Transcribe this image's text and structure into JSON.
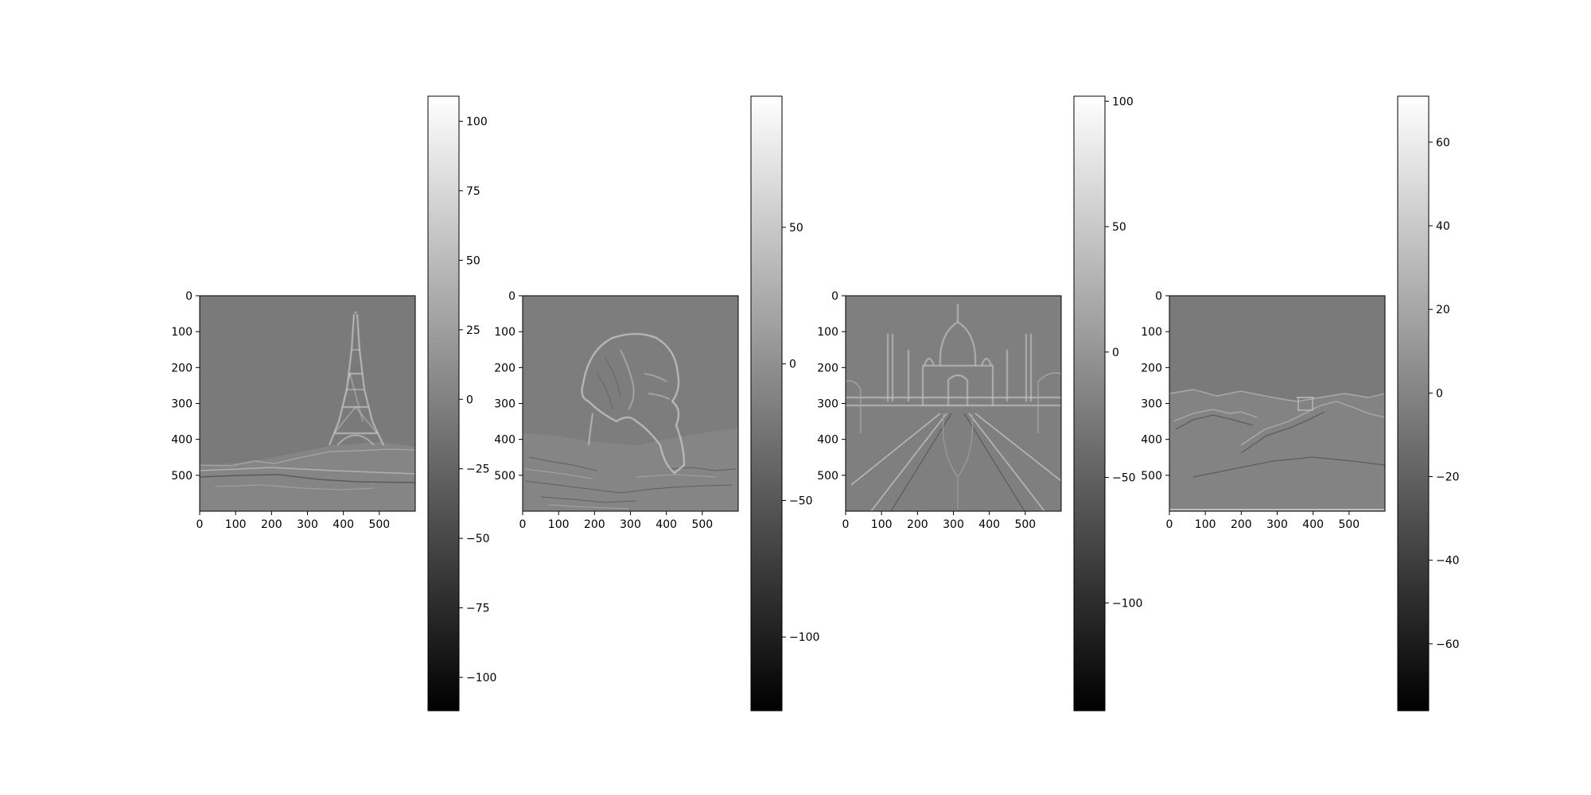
{
  "chart_data": [
    {
      "type": "heatmap",
      "subject": "Eiffel Tower (high-pass filtered grayscale image)",
      "colormap": "gray",
      "image_extent": {
        "x": [
          0,
          600
        ],
        "y": [
          600,
          0
        ]
      },
      "xticks": [
        "0",
        "100",
        "200",
        "300",
        "400",
        "500"
      ],
      "yticks": [
        "0",
        "100",
        "200",
        "300",
        "400",
        "500"
      ],
      "colorbar": {
        "range": [
          -112,
          109
        ],
        "ticks": [
          {
            "value": 100,
            "label": "100"
          },
          {
            "value": 75,
            "label": "75"
          },
          {
            "value": 50,
            "label": "50"
          },
          {
            "value": 25,
            "label": "25"
          },
          {
            "value": 0,
            "label": "0"
          },
          {
            "value": -25,
            "label": "−25"
          },
          {
            "value": -50,
            "label": "−50"
          },
          {
            "value": -75,
            "label": "−75"
          },
          {
            "value": -100,
            "label": "−100"
          }
        ]
      }
    },
    {
      "type": "heatmap",
      "subject": "Sphinx (high-pass filtered grayscale image)",
      "colormap": "gray",
      "image_extent": {
        "x": [
          0,
          600
        ],
        "y": [
          600,
          0
        ]
      },
      "xticks": [
        "0",
        "100",
        "200",
        "300",
        "400",
        "500"
      ],
      "yticks": [
        "0",
        "100",
        "200",
        "300",
        "400",
        "500"
      ],
      "colorbar": {
        "range": [
          -127,
          98
        ],
        "ticks": [
          {
            "value": 50,
            "label": "50"
          },
          {
            "value": 0,
            "label": "0"
          },
          {
            "value": -50,
            "label": "−50"
          },
          {
            "value": -100,
            "label": "−100"
          }
        ]
      }
    },
    {
      "type": "heatmap",
      "subject": "Taj Mahal (high-pass filtered grayscale image)",
      "colormap": "gray",
      "image_extent": {
        "x": [
          0,
          600
        ],
        "y": [
          600,
          0
        ]
      },
      "xticks": [
        "0",
        "100",
        "200",
        "300",
        "400",
        "500"
      ],
      "yticks": [
        "0",
        "100",
        "200",
        "300",
        "400",
        "500"
      ],
      "colorbar": {
        "range": [
          -143,
          102
        ],
        "ticks": [
          {
            "value": 100,
            "label": "100"
          },
          {
            "value": 50,
            "label": "50"
          },
          {
            "value": 0,
            "label": "0"
          },
          {
            "value": -50,
            "label": "−50"
          },
          {
            "value": -100,
            "label": "−100"
          }
        ]
      }
    },
    {
      "type": "heatmap",
      "subject": "Great Wall of China (high-pass filtered grayscale image)",
      "colormap": "gray",
      "image_extent": {
        "x": [
          0,
          600
        ],
        "y": [
          600,
          0
        ]
      },
      "xticks": [
        "0",
        "100",
        "200",
        "300",
        "400",
        "500"
      ],
      "yticks": [
        "0",
        "100",
        "200",
        "300",
        "400",
        "500"
      ],
      "colorbar": {
        "range": [
          -76,
          71
        ],
        "ticks": [
          {
            "value": 60,
            "label": "60"
          },
          {
            "value": 40,
            "label": "40"
          },
          {
            "value": 20,
            "label": "20"
          },
          {
            "value": 0,
            "label": "0"
          },
          {
            "value": -20,
            "label": "−20"
          },
          {
            "value": -40,
            "label": "−40"
          },
          {
            "value": -60,
            "label": "−60"
          }
        ]
      }
    }
  ]
}
